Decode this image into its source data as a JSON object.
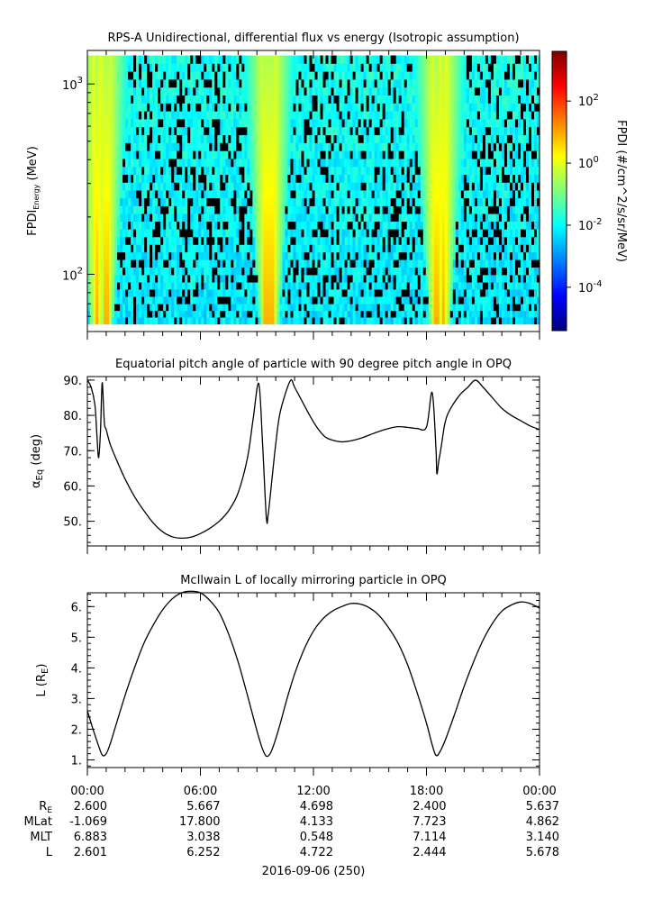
{
  "colorbar_palette": [
    "#00007f",
    "#0000ff",
    "#007fff",
    "#00ffff",
    "#7fff7f",
    "#ffff00",
    "#ff7f00",
    "#ff0000",
    "#7f0000"
  ],
  "chart_data": [
    {
      "type": "heatmap",
      "title": "RPS-A Unidirectional, differential flux vs energy (Isotropic assumption)",
      "ylabel_main": "FPDI",
      "ylabel_sub": "Energy",
      "ylabel_unit": " (MeV)",
      "yscale": "log",
      "ylim": [
        50,
        1500
      ],
      "ytick_base": "10",
      "yticks": [
        {
          "value": 100,
          "exp": "2"
        },
        {
          "value": 1000,
          "exp": "3"
        }
      ],
      "colorbar": {
        "label": "FPDI (#/cm^2/s/sr/MeV)",
        "scale": "log",
        "range": [
          4e-06,
          4000
        ],
        "ticks": [
          {
            "value": 100,
            "exp": "2"
          },
          {
            "value": 1,
            "exp": "0"
          },
          {
            "value": 0.01,
            "exp": "-2"
          },
          {
            "value": 0.0001,
            "exp": "-4"
          }
        ]
      },
      "energy_channels_mev": [
        57,
        62,
        67,
        73,
        80,
        87,
        95,
        104,
        114,
        125,
        137,
        150,
        165,
        181,
        199,
        218,
        240,
        264,
        290,
        319,
        351,
        386,
        425,
        468,
        515,
        567,
        624,
        687,
        756,
        832,
        916,
        1008,
        1110,
        1222,
        1345
      ],
      "flux_peak_times_hours": [
        0.5,
        1.0,
        9.5,
        9.8,
        18.5,
        18.9
      ]
    },
    {
      "type": "line",
      "title": "Equatorial pitch angle of particle with 90 degree pitch angle in OPQ",
      "ylabel": "α",
      "ylabel_sub": "Eq",
      "ylabel_unit": " (deg)",
      "ylim": [
        43,
        91
      ],
      "yticks": [
        50,
        60,
        70,
        80,
        90
      ],
      "ytick_labels": [
        "50.",
        "60.",
        "70.",
        "80.",
        "90."
      ],
      "series": [
        {
          "x": [
            0,
            0.2,
            0.4,
            0.5,
            0.6,
            0.7,
            0.75,
            0.8,
            0.9,
            1.0,
            1.2,
            1.5,
            2.0,
            2.5,
            3.0,
            3.5,
            4.0,
            4.5,
            5.0,
            5.5,
            6.0,
            6.5,
            7.0,
            7.5,
            8.0,
            8.5,
            8.8,
            9.1,
            9.3,
            9.5,
            9.6,
            9.8,
            10.0,
            10.2,
            10.5,
            10.8,
            11.0,
            11.4,
            11.8,
            12.2,
            12.6,
            13.0,
            13.5,
            14.0,
            14.5,
            15.0,
            15.5,
            16.0,
            16.5,
            17.0,
            17.5,
            18.0,
            18.3,
            18.5,
            18.55,
            18.65,
            18.75,
            18.85,
            18.95,
            19.1,
            19.4,
            19.8,
            20.2,
            20.6,
            21.0,
            21.5,
            22.0,
            22.5,
            23.0,
            23.5,
            24.0
          ],
          "y": [
            90,
            88,
            83,
            75,
            68,
            76,
            85,
            89,
            78,
            76,
            72,
            68,
            62,
            57,
            53,
            49.5,
            47,
            45.6,
            45.2,
            45.5,
            46.5,
            48,
            50,
            53,
            58,
            68,
            79,
            89,
            72,
            51,
            52,
            62,
            72,
            80,
            86,
            90,
            88,
            84,
            80,
            76.5,
            74,
            73,
            72.5,
            72.8,
            73.5,
            74.5,
            75.5,
            76.3,
            76.8,
            76.6,
            76.3,
            76.7,
            86.5,
            71,
            63.5,
            67,
            70,
            73.5,
            77,
            80,
            83,
            86,
            88,
            90,
            88,
            85,
            82,
            80,
            78.5,
            77,
            76
          ]
        }
      ]
    },
    {
      "type": "line",
      "title": "McIlwain L of locally mirroring particle in OPQ",
      "ylabel": "L (R",
      "ylabel_sub": "E",
      "ylabel_unit": ")",
      "ylim": [
        0.75,
        6.45
      ],
      "yticks": [
        1,
        2,
        3,
        4,
        5,
        6
      ],
      "ytick_labels": [
        "1.",
        "2.",
        "3.",
        "4.",
        "5.",
        "6."
      ],
      "series": [
        {
          "x": [
            0,
            0.3,
            0.6,
            0.8,
            1.0,
            1.2,
            1.5,
            2.0,
            2.5,
            3.0,
            3.5,
            4.0,
            4.5,
            5.0,
            5.5,
            6.0,
            6.5,
            7.0,
            7.5,
            8.0,
            8.5,
            9.0,
            9.3,
            9.5,
            9.7,
            9.9,
            10.2,
            10.6,
            11.0,
            11.5,
            12.0,
            12.5,
            13.0,
            13.5,
            14.0,
            14.5,
            15.0,
            15.5,
            16.0,
            16.5,
            17.0,
            17.5,
            18.0,
            18.3,
            18.5,
            18.7,
            19.0,
            19.5,
            20.0,
            20.5,
            21.0,
            21.5,
            22.0,
            22.5,
            23.0,
            23.5,
            24.0
          ],
          "y": [
            2.6,
            2.0,
            1.45,
            1.15,
            1.2,
            1.5,
            2.1,
            3.1,
            4.0,
            4.8,
            5.4,
            5.9,
            6.25,
            6.45,
            6.5,
            6.45,
            6.2,
            5.8,
            5.1,
            4.2,
            3.1,
            1.95,
            1.35,
            1.12,
            1.2,
            1.5,
            2.1,
            3.0,
            3.8,
            4.6,
            5.2,
            5.6,
            5.85,
            6.0,
            6.1,
            6.08,
            5.95,
            5.7,
            5.3,
            4.8,
            4.1,
            3.2,
            2.2,
            1.5,
            1.15,
            1.25,
            1.65,
            2.5,
            3.4,
            4.2,
            4.9,
            5.45,
            5.85,
            6.05,
            6.15,
            6.1,
            5.95
          ]
        }
      ]
    }
  ],
  "x_axis": {
    "range_hours": [
      0,
      24
    ],
    "major_ticks": [
      0,
      6,
      12,
      18,
      24
    ],
    "minor_step_hours": 1,
    "tick_labels": [
      "00:00",
      "06:00",
      "12:00",
      "18:00",
      "00:00"
    ],
    "date_label": "2016-09-06 (250)",
    "ephemeris": [
      {
        "name": "R",
        "sub": "E",
        "values": [
          "2.600",
          "5.667",
          "4.698",
          "2.400",
          "5.637"
        ]
      },
      {
        "name": "MLat",
        "sub": "",
        "values": [
          "-1.069",
          "17.800",
          "4.133",
          "7.723",
          "4.862"
        ]
      },
      {
        "name": "MLT",
        "sub": "",
        "values": [
          "6.883",
          "3.038",
          "0.548",
          "7.114",
          "3.140"
        ]
      },
      {
        "name": "L",
        "sub": "",
        "values": [
          "2.601",
          "6.252",
          "4.722",
          "2.444",
          "5.678"
        ]
      }
    ]
  }
}
